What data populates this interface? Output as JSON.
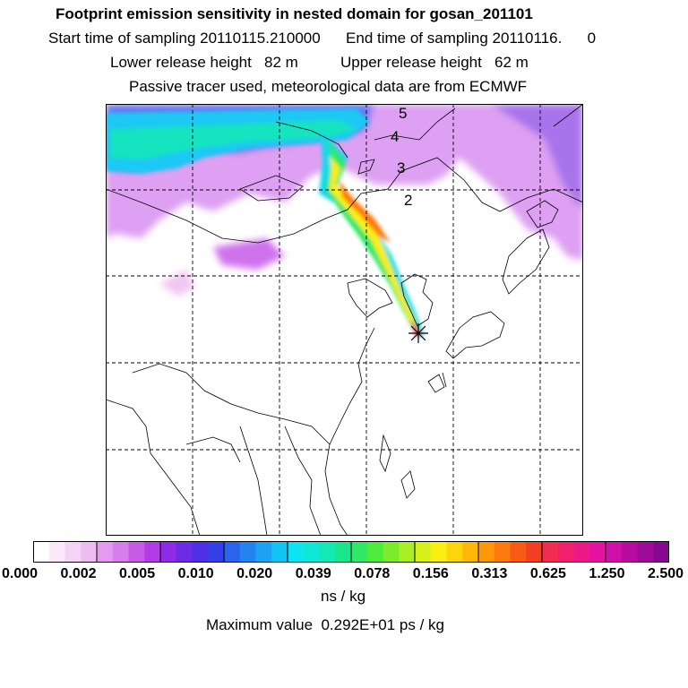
{
  "header": {
    "title": "Footprint emission sensitivity in nested domain for gosan_201101",
    "line1": "Start time of sampling 20110115.210000      End time of sampling 20110116.      0",
    "line2": "Lower release height   82 m          Upper release height   62 m",
    "line3": "Passive tracer used, meteorological data are from ECMWF"
  },
  "map": {
    "contour_labels": [
      "5",
      "4",
      "3",
      "2"
    ],
    "receptor_marker": "asterisk",
    "grid": "dashed"
  },
  "colorbar": {
    "ticks": [
      "0.000",
      "0.002",
      "0.005",
      "0.010",
      "0.020",
      "0.039",
      "0.078",
      "0.156",
      "0.313",
      "0.625",
      "1.250",
      "2.500"
    ],
    "colors": [
      "#ffffff",
      "#fbe9fb",
      "#f5d3f5",
      "#eebdf0",
      "#e49bef",
      "#d77ded",
      "#c65ae9",
      "#b43be8",
      "#8d2be6",
      "#6c2be6",
      "#4f2ee8",
      "#3440ea",
      "#2a63ee",
      "#2483f2",
      "#1ea3f4",
      "#12c3f6",
      "#0de5f2",
      "#0ee8d6",
      "#14e8b4",
      "#1ae68c",
      "#2ee866",
      "#4eea3e",
      "#7aec2c",
      "#a8ee22",
      "#d6f01c",
      "#fbee12",
      "#fed40d",
      "#ffb80a",
      "#fe9808",
      "#fc7a10",
      "#f85a18",
      "#f43e22",
      "#f22c4e",
      "#f0206a",
      "#ec1888",
      "#e312a0",
      "#d00ea8",
      "#b80ca0",
      "#a00a98",
      "#880890"
    ],
    "unit": "ns / kg"
  },
  "max_value": "Maximum value  0.292E+01 ps / kg"
}
